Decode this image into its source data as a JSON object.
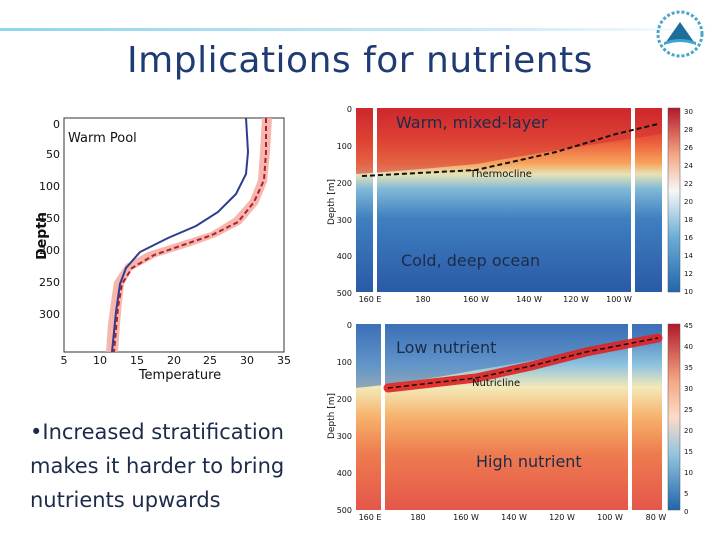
{
  "slide": {
    "title": "Implications for nutrients",
    "bullet": "•Increased stratification makes it harder to bring nutrients upwards"
  },
  "profile_plot": {
    "legend_label": "Warm Pool",
    "xlabel": "Temperature",
    "ylabel": "Depth",
    "x_ticks": [
      "5",
      "10",
      "15",
      "20",
      "25",
      "30",
      "35"
    ],
    "y_ticks": [
      "0",
      "50",
      "100",
      "150",
      "200",
      "250",
      "300"
    ],
    "colors": {
      "solid": "#2c3e8f",
      "dashed": "#b0202a",
      "band": "#f4a9a0"
    }
  },
  "temperature_section": {
    "ylabel": "Depth [m]",
    "y_ticks": [
      "0",
      "100",
      "200",
      "300",
      "400",
      "500"
    ],
    "x_ticks": [
      "160 E",
      "180",
      "160 W",
      "140 W",
      "120 W",
      "100 W"
    ],
    "colorbar_ticks": [
      "30",
      "28",
      "26",
      "24",
      "22",
      "20",
      "18",
      "16",
      "14",
      "12",
      "10"
    ],
    "thermocline_label": "Thermocline",
    "annotation_top": "Warm, mixed-layer",
    "annotation_bottom": "Cold, deep ocean"
  },
  "nutrient_section": {
    "ylabel": "Depth [m]",
    "y_ticks": [
      "0",
      "100",
      "200",
      "300",
      "400",
      "500"
    ],
    "x_ticks": [
      "160 E",
      "180",
      "160 W",
      "140 W",
      "120 W",
      "100 W",
      "80 W"
    ],
    "colorbar_ticks": [
      "45",
      "40",
      "35",
      "30",
      "25",
      "20",
      "15",
      "10",
      "5",
      "0"
    ],
    "nutricline_label": "Nutricline",
    "annotation_top": "Low nutrient",
    "annotation_bottom": "High nutrient"
  }
}
